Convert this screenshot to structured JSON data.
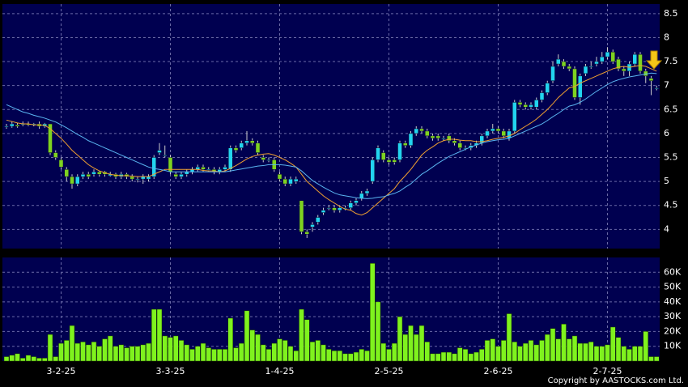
{
  "chart_data": [
    {
      "type": "candlestick",
      "ylim": [
        3.6,
        8.7
      ],
      "yticks": [
        4,
        4.5,
        5,
        5.5,
        6,
        6.5,
        7,
        7.5,
        8,
        8.5
      ],
      "grid": true,
      "up_color": "#22d4f0",
      "down_color": "#7ed321",
      "open": [
        6.15,
        6.15,
        6.18,
        6.2,
        6.2,
        6.18,
        6.2,
        6.15,
        6.2,
        5.6,
        5.45,
        5.25,
        5.1,
        4.95,
        5.1,
        5.15,
        5.15,
        5.2,
        5.2,
        5.12,
        5.15,
        5.1,
        5.15,
        5.1,
        5.05,
        5.05,
        5.05,
        5.1,
        5.6,
        5.55,
        5.5,
        5.15,
        5.1,
        5.15,
        5.2,
        5.25,
        5.3,
        5.25,
        5.25,
        5.2,
        5.25,
        5.25,
        5.7,
        5.7,
        5.8,
        5.85,
        5.8,
        5.5,
        5.45,
        5.45,
        5.15,
        5.05,
        4.95,
        5.0,
        4.6,
        3.95,
        4.05,
        4.15,
        4.35,
        4.45,
        4.45,
        4.4,
        4.45,
        4.45,
        4.55,
        4.65,
        4.75,
        5.0,
        5.45,
        5.6,
        5.45,
        5.45,
        5.45,
        5.8,
        5.75,
        6.0,
        6.1,
        6.05,
        5.95,
        5.95,
        5.9,
        5.95,
        5.85,
        5.8,
        5.7,
        5.7,
        5.75,
        5.8,
        5.95,
        6.05,
        6.1,
        6.05,
        5.9,
        6.05,
        6.65,
        6.6,
        6.55,
        6.55,
        6.7,
        6.85,
        7.1,
        7.45,
        7.5,
        7.4,
        7.35,
        6.75,
        7.25,
        7.4,
        7.45,
        7.5,
        7.6,
        7.7,
        7.55,
        7.35,
        7.3,
        7.45,
        7.65,
        7.3,
        7.15,
        6.95
      ],
      "high": [
        6.2,
        6.25,
        6.22,
        6.25,
        6.25,
        6.22,
        6.25,
        6.22,
        6.2,
        5.65,
        5.5,
        5.3,
        5.15,
        5.15,
        5.2,
        5.2,
        5.25,
        5.22,
        5.22,
        5.2,
        5.18,
        5.2,
        5.18,
        5.15,
        5.1,
        5.15,
        5.15,
        5.55,
        5.8,
        5.75,
        5.55,
        5.2,
        5.2,
        5.25,
        5.3,
        5.35,
        5.35,
        5.3,
        5.3,
        5.3,
        5.35,
        5.75,
        5.75,
        5.85,
        6.05,
        5.9,
        5.85,
        5.55,
        5.5,
        5.5,
        5.2,
        5.1,
        5.1,
        5.1,
        4.6,
        4.0,
        4.15,
        4.3,
        4.45,
        4.5,
        4.5,
        4.5,
        4.5,
        4.6,
        4.65,
        4.8,
        4.85,
        5.5,
        5.75,
        5.65,
        5.5,
        5.5,
        5.85,
        5.85,
        6.05,
        6.15,
        6.15,
        6.1,
        6.0,
        6.0,
        5.95,
        6.0,
        5.9,
        5.85,
        5.75,
        5.8,
        5.85,
        6.0,
        6.1,
        6.2,
        6.15,
        6.1,
        6.1,
        6.7,
        6.7,
        6.65,
        6.65,
        6.75,
        6.9,
        7.1,
        7.5,
        7.65,
        7.55,
        7.45,
        7.4,
        7.25,
        7.45,
        7.5,
        7.6,
        7.7,
        7.8,
        7.75,
        7.6,
        7.4,
        7.5,
        7.7,
        7.7,
        7.35,
        7.2,
        7.0
      ],
      "low": [
        6.1,
        6.12,
        6.12,
        6.15,
        6.15,
        6.15,
        6.1,
        6.12,
        5.55,
        5.45,
        5.25,
        5.0,
        4.85,
        4.9,
        5.05,
        5.05,
        5.1,
        5.1,
        5.1,
        5.1,
        5.05,
        5.05,
        5.05,
        5.0,
        4.98,
        4.95,
        5.0,
        5.05,
        5.55,
        5.5,
        5.15,
        5.05,
        5.05,
        5.1,
        5.15,
        5.2,
        5.2,
        5.2,
        5.15,
        5.15,
        5.2,
        5.2,
        5.6,
        5.65,
        5.75,
        5.75,
        5.55,
        5.4,
        5.4,
        5.2,
        5.0,
        4.9,
        4.9,
        4.95,
        3.9,
        3.82,
        3.95,
        4.1,
        4.3,
        4.4,
        4.35,
        4.35,
        4.4,
        4.4,
        4.5,
        4.6,
        4.7,
        4.95,
        5.4,
        5.4,
        5.35,
        5.35,
        5.4,
        5.7,
        5.7,
        5.95,
        6.0,
        5.9,
        5.85,
        5.85,
        5.85,
        5.8,
        5.75,
        5.65,
        5.65,
        5.65,
        5.7,
        5.75,
        5.9,
        6.0,
        6.0,
        5.9,
        5.85,
        6.0,
        6.55,
        6.5,
        6.5,
        6.5,
        6.65,
        6.8,
        7.05,
        7.4,
        7.35,
        7.3,
        6.7,
        6.6,
        7.2,
        7.35,
        7.4,
        7.45,
        7.55,
        7.45,
        7.3,
        7.2,
        7.2,
        7.4,
        7.25,
        7.05,
        6.8,
        6.9
      ],
      "close": [
        6.15,
        6.2,
        6.15,
        6.2,
        6.18,
        6.2,
        6.15,
        6.2,
        5.6,
        5.5,
        5.3,
        5.1,
        4.95,
        5.1,
        5.15,
        5.1,
        5.2,
        5.15,
        5.15,
        5.15,
        5.1,
        5.15,
        5.1,
        5.05,
        5.05,
        5.1,
        5.1,
        5.5,
        5.65,
        5.55,
        5.2,
        5.1,
        5.15,
        5.2,
        5.25,
        5.3,
        5.25,
        5.25,
        5.2,
        5.25,
        5.3,
        5.7,
        5.65,
        5.8,
        5.85,
        5.8,
        5.6,
        5.45,
        5.45,
        5.25,
        5.05,
        4.95,
        5.05,
        5.05,
        3.95,
        3.9,
        4.1,
        4.25,
        4.4,
        4.45,
        4.4,
        4.45,
        4.45,
        4.55,
        4.6,
        4.75,
        4.8,
        5.45,
        5.7,
        5.45,
        5.4,
        5.4,
        5.8,
        5.75,
        6.0,
        6.1,
        6.05,
        5.95,
        5.9,
        5.9,
        5.9,
        5.85,
        5.8,
        5.7,
        5.7,
        5.75,
        5.8,
        5.95,
        6.05,
        6.1,
        6.05,
        5.95,
        6.05,
        6.65,
        6.6,
        6.55,
        6.6,
        6.7,
        6.85,
        7.05,
        7.4,
        7.55,
        7.4,
        7.35,
        6.75,
        7.2,
        7.4,
        7.4,
        7.5,
        7.6,
        7.7,
        7.5,
        7.35,
        7.3,
        7.45,
        7.65,
        7.3,
        7.2,
        7.1,
        6.95
      ],
      "lines": [
        {
          "color": "#f0a030",
          "values": [
            6.28,
            6.25,
            6.22,
            6.2,
            6.2,
            6.18,
            6.18,
            6.17,
            6.1,
            6.0,
            5.9,
            5.78,
            5.65,
            5.55,
            5.45,
            5.35,
            5.28,
            5.22,
            5.18,
            5.15,
            5.13,
            5.12,
            5.12,
            5.11,
            5.1,
            5.1,
            5.1,
            5.15,
            5.2,
            5.25,
            5.25,
            5.25,
            5.25,
            5.25,
            5.25,
            5.25,
            5.23,
            5.22,
            5.22,
            5.2,
            5.22,
            5.27,
            5.33,
            5.4,
            5.47,
            5.52,
            5.55,
            5.57,
            5.58,
            5.55,
            5.5,
            5.45,
            5.38,
            5.3,
            5.15,
            5.0,
            4.9,
            4.8,
            4.7,
            4.62,
            4.55,
            4.48,
            4.42,
            4.4,
            4.33,
            4.3,
            4.35,
            4.45,
            4.55,
            4.65,
            4.75,
            4.85,
            5.0,
            5.12,
            5.25,
            5.4,
            5.55,
            5.65,
            5.72,
            5.8,
            5.85,
            5.88,
            5.88,
            5.86,
            5.85,
            5.85,
            5.83,
            5.83,
            5.85,
            5.88,
            5.9,
            5.92,
            5.95,
            6.0,
            6.08,
            6.15,
            6.22,
            6.3,
            6.4,
            6.5,
            6.62,
            6.75,
            6.85,
            6.95,
            6.98,
            7.05,
            7.1,
            7.15,
            7.2,
            7.25,
            7.3,
            7.35,
            7.38,
            7.4,
            7.38,
            7.4,
            7.42,
            7.4,
            7.35,
            7.3
          ]
        },
        {
          "color": "#5ab4f0",
          "values": [
            6.6,
            6.55,
            6.5,
            6.45,
            6.42,
            6.38,
            6.35,
            6.32,
            6.28,
            6.24,
            6.18,
            6.12,
            6.05,
            5.98,
            5.92,
            5.85,
            5.8,
            5.75,
            5.7,
            5.65,
            5.6,
            5.55,
            5.5,
            5.45,
            5.4,
            5.35,
            5.3,
            5.27,
            5.25,
            5.23,
            5.2,
            5.2,
            5.2,
            5.2,
            5.2,
            5.2,
            5.2,
            5.2,
            5.2,
            5.2,
            5.2,
            5.22,
            5.24,
            5.26,
            5.28,
            5.3,
            5.32,
            5.33,
            5.35,
            5.35,
            5.35,
            5.34,
            5.32,
            5.3,
            5.22,
            5.12,
            5.02,
            4.95,
            4.88,
            4.82,
            4.76,
            4.72,
            4.7,
            4.68,
            4.66,
            4.65,
            4.64,
            4.65,
            4.67,
            4.68,
            4.72,
            4.75,
            4.8,
            4.88,
            4.95,
            5.05,
            5.15,
            5.22,
            5.3,
            5.38,
            5.45,
            5.52,
            5.57,
            5.62,
            5.67,
            5.72,
            5.76,
            5.8,
            5.83,
            5.85,
            5.87,
            5.88,
            5.9,
            5.95,
            6.0,
            6.05,
            6.1,
            6.15,
            6.2,
            6.27,
            6.35,
            6.42,
            6.5,
            6.57,
            6.6,
            6.65,
            6.72,
            6.8,
            6.88,
            6.95,
            7.02,
            7.08,
            7.12,
            7.15,
            7.18,
            7.2,
            7.22,
            7.24,
            7.26,
            7.25
          ]
        }
      ]
    },
    {
      "type": "bar",
      "color": "#7ff21e",
      "categories": [
        null,
        null,
        null,
        null,
        null,
        null,
        null,
        null,
        null,
        null,
        "3-2-25",
        null,
        null,
        null,
        null,
        null,
        null,
        null,
        null,
        null,
        null,
        null,
        null,
        null,
        null,
        null,
        null,
        null,
        null,
        null,
        "3-3-25",
        null,
        null,
        null,
        null,
        null,
        null,
        null,
        null,
        null,
        null,
        null,
        null,
        null,
        null,
        null,
        null,
        null,
        null,
        null,
        "1-4-25",
        null,
        null,
        null,
        null,
        null,
        null,
        null,
        null,
        null,
        null,
        null,
        null,
        null,
        null,
        null,
        null,
        null,
        null,
        null,
        "2-5-25",
        null,
        null,
        null,
        null,
        null,
        null,
        null,
        null,
        null,
        null,
        null,
        null,
        null,
        null,
        null,
        null,
        null,
        null,
        null,
        "2-6-25",
        null,
        null,
        null,
        null,
        null,
        null,
        null,
        null,
        null,
        null,
        null,
        null,
        null,
        null,
        null,
        null,
        null,
        null,
        null,
        "2-7-25",
        null,
        null,
        null,
        null,
        null,
        null,
        null,
        null,
        null
      ],
      "values": [
        3000,
        4000,
        5000,
        2000,
        4000,
        3000,
        2000,
        2000,
        18000,
        3000,
        12000,
        14000,
        24000,
        12000,
        13000,
        11000,
        13000,
        10000,
        15000,
        17000,
        10000,
        11000,
        9000,
        10000,
        10000,
        11000,
        12000,
        35000,
        35000,
        17000,
        16000,
        17000,
        14000,
        11000,
        8000,
        10000,
        12000,
        9000,
        8000,
        8000,
        8000,
        29000,
        9000,
        12000,
        34000,
        21000,
        18000,
        11000,
        8000,
        12000,
        15000,
        14000,
        10000,
        7000,
        35000,
        28000,
        13000,
        14000,
        11000,
        8000,
        7000,
        7000,
        5000,
        5000,
        6000,
        8000,
        7000,
        66000,
        40000,
        12000,
        8000,
        12000,
        30000,
        18000,
        24000,
        18000,
        24000,
        13000,
        5000,
        5000,
        6000,
        6000,
        5000,
        9000,
        8000,
        5000,
        6000,
        8000,
        14000,
        15000,
        10000,
        14000,
        32000,
        13000,
        10000,
        12000,
        14000,
        11000,
        14000,
        18000,
        22000,
        15000,
        25000,
        15000,
        17000,
        12000,
        12000,
        13000,
        10000,
        10000,
        11000,
        23000,
        16000,
        10000,
        8000,
        10000,
        10000,
        20000,
        3000,
        3000
      ],
      "ylim": [
        0,
        70000
      ],
      "yticks": [
        {
          "value": 10000,
          "label": "10K"
        },
        {
          "value": 20000,
          "label": "20K"
        },
        {
          "value": 30000,
          "label": "30K"
        },
        {
          "value": 40000,
          "label": "40K"
        },
        {
          "value": 50000,
          "label": "50K"
        },
        {
          "value": 60000,
          "label": "60K"
        }
      ],
      "grid": true
    }
  ],
  "footer": {
    "copyright": "Copyright by AASTOCKS.com Ltd."
  }
}
